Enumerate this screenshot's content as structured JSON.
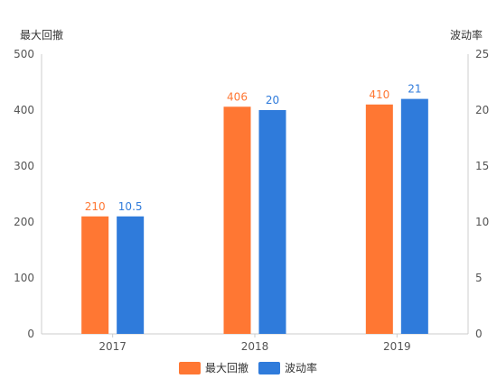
{
  "chart_data": {
    "type": "bar",
    "categories": [
      "2017",
      "2018",
      "2019"
    ],
    "series": [
      {
        "name": "最大回撤",
        "values": [
          210,
          406,
          410
        ],
        "axis": "left",
        "color": "#FF7733"
      },
      {
        "name": "波动率",
        "values": [
          10.5,
          20,
          21
        ],
        "axis": "right",
        "color": "#2F7BDB"
      }
    ],
    "y_left": {
      "label": "最大回撤",
      "lim": [
        0,
        500
      ],
      "ticks": [
        0,
        100,
        200,
        300,
        400,
        500
      ]
    },
    "y_right": {
      "label": "波动率",
      "lim": [
        0,
        25
      ],
      "ticks": [
        0,
        5,
        10,
        15,
        20,
        25
      ]
    },
    "data_labels": [
      [
        "210",
        "406",
        "410"
      ],
      [
        "10.5",
        "20",
        "21"
      ]
    ],
    "legend": {
      "position": "bottom-center"
    },
    "grid": false
  }
}
